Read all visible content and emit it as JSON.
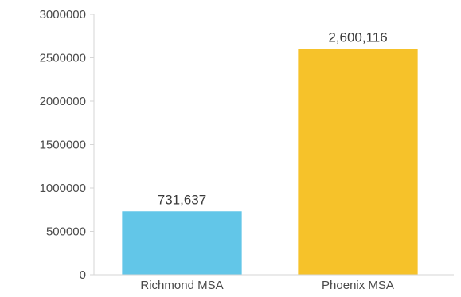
{
  "chart_data": {
    "type": "bar",
    "categories": [
      "Richmond MSA",
      "Phoenix MSA"
    ],
    "values": [
      731637,
      2600116
    ],
    "data_labels": [
      "731,637",
      "2,600,116"
    ],
    "colors": [
      "#62c6e8",
      "#f6c22a"
    ],
    "ylim": [
      0,
      3000000
    ],
    "yticks": [
      0,
      500000,
      1000000,
      1500000,
      2000000,
      2500000,
      3000000
    ],
    "ytick_labels": [
      "0",
      "500000",
      "1000000",
      "1500000",
      "2000000",
      "2500000",
      "3000000"
    ],
    "grid": false,
    "legend": "none"
  }
}
